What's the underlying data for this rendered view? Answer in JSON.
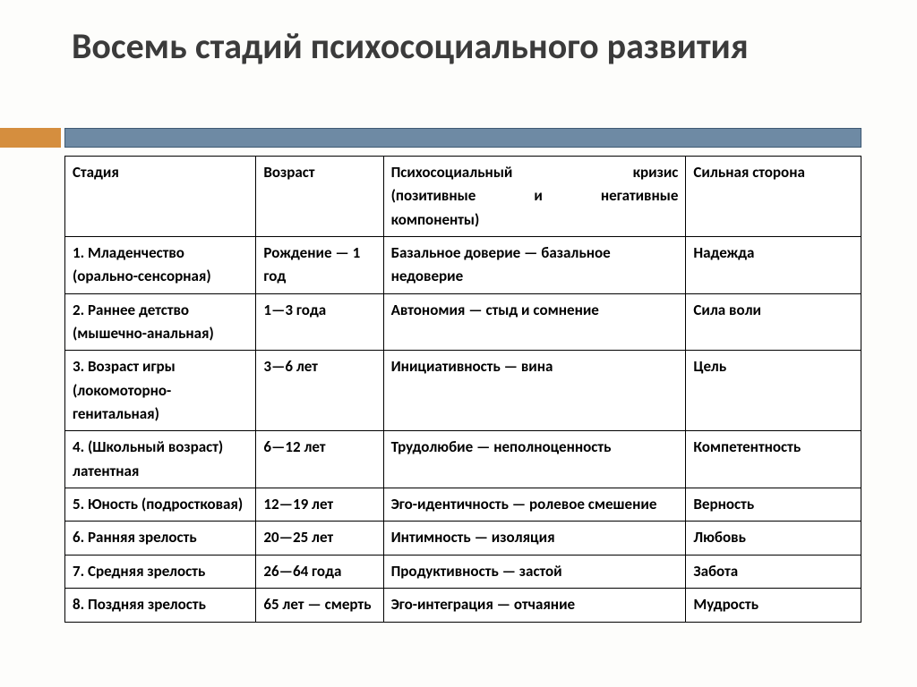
{
  "title": "Восемь стадий психосоциального развития",
  "colors": {
    "accent": "#d58e3e",
    "bar": "#6e8aa4",
    "bar_border": "#3f5a73",
    "text": "#3b3b3b",
    "cell_text": "#000000",
    "background": "#fdfdfb"
  },
  "table": {
    "header": {
      "col1": "Стадия",
      "col2": "Возраст",
      "col3_l1": "Психосоциальный кризис",
      "col3_l2": "(позитивные и негативные",
      "col3_l3": "компоненты)",
      "col4": "Сильная сторона"
    },
    "rows": [
      {
        "stage": "1. Младенчество (орально-сенсорная)",
        "age": "Рождение — 1 год",
        "crisis": "Базальное доверие — базальное недоверие",
        "strength": "Надежда"
      },
      {
        "stage": "2. Раннее детство (мышечно-анальная)",
        "age": "1—3 года",
        "crisis": "Автономия — стыд и сомнение",
        "strength": "Сила воли"
      },
      {
        "stage": "3. Возраст игры (локомоторно-генитальная)",
        "age": "3—6 лет",
        "crisis": "Инициативность — вина",
        "strength": "Цель"
      },
      {
        "stage": "4. (Школьный возраст) латентная",
        "age": "6—12 лет",
        "crisis": "Трудолюбие — неполноценность",
        "strength": "Компетентность"
      },
      {
        "stage": "5. Юность (подростковая)",
        "age": "12—19 лет",
        "crisis": "Эго-идентичность — ролевое смешение",
        "strength": "Верность"
      },
      {
        "stage": "6. Ранняя зрелость",
        "age": "20—25 лет",
        "crisis": "Интимность — изоляция",
        "strength": "Любовь"
      },
      {
        "stage": "7. Средняя зрелость",
        "age": "26—64 года",
        "crisis": "Продуктивность — застой",
        "strength": "Забота"
      },
      {
        "stage": "8. Поздняя зрелость",
        "age": "65 лет — смерть",
        "crisis": "Эго-интеграция — отчаяние",
        "strength": "Мудрость"
      }
    ],
    "col_widths_pct": [
      24,
      16,
      38,
      22
    ],
    "font_size_pt": 13,
    "font_weight": "bold"
  }
}
